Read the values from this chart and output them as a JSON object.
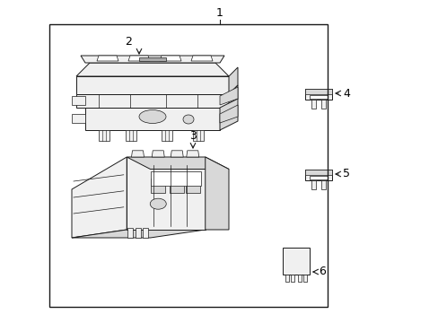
{
  "background_color": "#ffffff",
  "border_color": "#000000",
  "line_color": "#1a1a1a",
  "text_color": "#000000",
  "fig_width": 4.89,
  "fig_height": 3.6,
  "dpi": 100,
  "callout_fontsize": 9,
  "lw_main": 0.7,
  "lw_detail": 0.5,
  "fill_light": "#f0f0f0",
  "fill_mid": "#d8d8d8",
  "fill_dark": "#aaaaaa",
  "fill_white": "#ffffff"
}
